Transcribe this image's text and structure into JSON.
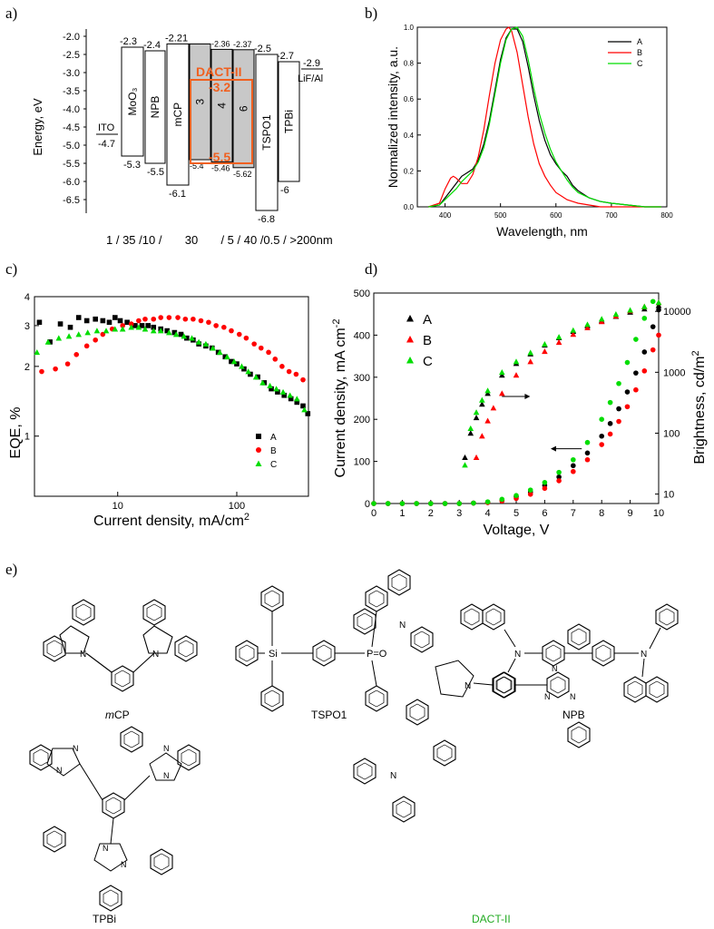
{
  "figure": {
    "panel_labels": [
      "a)",
      "b)",
      "c)",
      "d)",
      "e)"
    ]
  },
  "energy_diagram": {
    "y_label": "Energy, eV",
    "y_ticks": [
      "-2.0",
      "-2.5",
      "-3.0",
      "-3.5",
      "-4.0",
      "-4.5",
      "-5.0",
      "-5.5",
      "-6.0",
      "-6.5"
    ],
    "layers": [
      {
        "name": "ITO",
        "lumo": null,
        "homo": -4.7,
        "lumo_label": "",
        "homo_label": "-4.7"
      },
      {
        "name": "MoO₃",
        "lumo": -2.3,
        "homo": -5.3,
        "lumo_label": "-2.3",
        "homo_label": "-5.3"
      },
      {
        "name": "NPB",
        "lumo": -2.4,
        "homo": -5.5,
        "lumo_label": "-2.4",
        "homo_label": "-5.5"
      },
      {
        "name": "mCP",
        "lumo": -2.21,
        "homo": -6.1,
        "lumo_label": "-2.21",
        "homo_label": "-6.1"
      },
      {
        "name": "3",
        "lumo": -2.21,
        "homo": -5.4,
        "lumo_label": "",
        "homo_label": "-5.4"
      },
      {
        "name": "4",
        "lumo": -2.36,
        "homo": -5.46,
        "lumo_label": "-2.36",
        "homo_label": "-5.46"
      },
      {
        "name": "6",
        "lumo": -2.37,
        "homo": -5.62,
        "lumo_label": "-2.37",
        "homo_label": "-5.62"
      },
      {
        "name": "TSPO1",
        "lumo": -2.5,
        "homo": -6.8,
        "lumo_label": "-2.5",
        "homo_label": "-6.8"
      },
      {
        "name": "TPBi",
        "lumo": -2.7,
        "homo": -6.0,
        "lumo_label": "-2.7",
        "homo_label": "-6"
      },
      {
        "name": "LiF/Al",
        "lumo": -2.9,
        "homo": null,
        "lumo_label": "-2.9",
        "homo_label": ""
      }
    ],
    "host": {
      "name": "DACT-II",
      "lumo_label": "-3.2",
      "homo_label": "-5.5"
    },
    "thickness_text": "1 / 35 /10 /       30       / 5 / 40 /0.5 / >200nm"
  },
  "chart_data": [
    {
      "type": "line",
      "title": "",
      "xlabel": "Wavelength, nm",
      "ylabel": "Normalized intensity, a.u.",
      "xlim": [
        350,
        800
      ],
      "ylim": [
        0,
        1.0
      ],
      "x_ticks": [
        400,
        500,
        600,
        700,
        800
      ],
      "y_ticks": [
        0.0,
        0.2,
        0.4,
        0.6,
        0.8,
        1.0
      ],
      "legend": "top-right",
      "series": [
        {
          "name": "A",
          "color": "#000000",
          "x": [
            370,
            390,
            400,
            410,
            420,
            430,
            440,
            450,
            460,
            470,
            480,
            490,
            500,
            510,
            520,
            530,
            540,
            550,
            560,
            570,
            580,
            590,
            600,
            610,
            620,
            630,
            640,
            660,
            680,
            700,
            730,
            760,
            790
          ],
          "y": [
            0,
            0.01,
            0.05,
            0.09,
            0.13,
            0.17,
            0.19,
            0.21,
            0.26,
            0.35,
            0.48,
            0.65,
            0.82,
            0.94,
            0.99,
            0.99,
            0.92,
            0.78,
            0.62,
            0.48,
            0.37,
            0.29,
            0.24,
            0.2,
            0.17,
            0.12,
            0.09,
            0.05,
            0.03,
            0.02,
            0.01,
            0,
            0
          ]
        },
        {
          "name": "B",
          "color": "#ff0000",
          "x": [
            370,
            390,
            400,
            410,
            415,
            420,
            430,
            440,
            450,
            460,
            470,
            480,
            490,
            500,
            510,
            515,
            520,
            530,
            540,
            550,
            560,
            570,
            580,
            590,
            600,
            610,
            620,
            630,
            640,
            660,
            680,
            700,
            730,
            760,
            790
          ],
          "y": [
            0,
            0.02,
            0.1,
            0.16,
            0.17,
            0.16,
            0.13,
            0.13,
            0.18,
            0.28,
            0.43,
            0.62,
            0.8,
            0.93,
            0.99,
            1.0,
            0.98,
            0.86,
            0.68,
            0.5,
            0.35,
            0.24,
            0.17,
            0.12,
            0.08,
            0.06,
            0.04,
            0.03,
            0.02,
            0.01,
            0,
            0,
            0,
            0,
            0
          ]
        },
        {
          "name": "C",
          "color": "#00dd00",
          "x": [
            370,
            390,
            400,
            410,
            420,
            430,
            440,
            450,
            460,
            470,
            480,
            490,
            500,
            510,
            520,
            530,
            540,
            550,
            560,
            570,
            580,
            590,
            600,
            610,
            620,
            630,
            640,
            660,
            680,
            700,
            730,
            760,
            790
          ],
          "y": [
            0,
            0.01,
            0.04,
            0.07,
            0.1,
            0.14,
            0.17,
            0.2,
            0.25,
            0.33,
            0.46,
            0.63,
            0.8,
            0.93,
            0.99,
            1.0,
            0.95,
            0.82,
            0.66,
            0.52,
            0.41,
            0.32,
            0.25,
            0.2,
            0.15,
            0.11,
            0.08,
            0.05,
            0.03,
            0.02,
            0.01,
            0,
            0
          ]
        }
      ]
    },
    {
      "type": "scatter",
      "title": "",
      "xlabel": "Current density, mA/cm",
      "xlabel_sup": "2",
      "ylabel": "EQE, %",
      "x_scale": "log",
      "y_scale": "log",
      "xlim": [
        2,
        400
      ],
      "ylim": [
        0.55,
        4
      ],
      "x_ticks": [
        10,
        100
      ],
      "y_ticks": [
        1,
        2,
        3,
        4
      ],
      "legend": "bottom-right",
      "series": [
        {
          "name": "A",
          "marker": "square",
          "color": "#000000",
          "x": [
            2.2,
            2.7,
            3.3,
            4.0,
            4.7,
            5.5,
            6.5,
            7.5,
            8.5,
            9.5,
            10.5,
            12,
            14,
            16,
            18,
            20,
            23,
            26,
            30,
            34,
            38,
            43,
            48,
            55,
            62,
            70,
            80,
            90,
            100,
            115,
            130,
            150,
            170,
            195,
            220,
            250,
            285,
            320,
            360,
            395
          ],
          "y": [
            3.1,
            2.55,
            3.05,
            2.95,
            3.25,
            3.15,
            3.2,
            3.15,
            3.1,
            3.25,
            3.15,
            3.1,
            3.0,
            3.0,
            3.0,
            2.95,
            2.9,
            2.85,
            2.8,
            2.75,
            2.65,
            2.6,
            2.5,
            2.45,
            2.4,
            2.3,
            2.2,
            2.1,
            2.05,
            1.95,
            1.85,
            1.8,
            1.7,
            1.6,
            1.55,
            1.5,
            1.45,
            1.4,
            1.35,
            1.25
          ]
        },
        {
          "name": "B",
          "marker": "circle",
          "color": "#ff0000",
          "x": [
            2.3,
            3.0,
            3.8,
            4.5,
            5.5,
            6.5,
            7.5,
            9,
            11,
            13,
            15,
            17,
            20,
            23,
            27,
            32,
            37,
            43,
            50,
            58,
            67,
            78,
            90,
            105,
            120,
            140,
            160,
            185,
            210,
            240,
            275,
            315,
            360
          ],
          "y": [
            1.9,
            1.95,
            2.05,
            2.25,
            2.45,
            2.6,
            2.75,
            2.9,
            3.0,
            3.05,
            3.15,
            3.2,
            3.2,
            3.25,
            3.25,
            3.25,
            3.2,
            3.2,
            3.15,
            3.1,
            3.0,
            2.95,
            2.85,
            2.75,
            2.65,
            2.5,
            2.4,
            2.3,
            2.15,
            2.0,
            1.9,
            1.85,
            1.75
          ]
        },
        {
          "name": "C",
          "marker": "triangle",
          "color": "#00dd00",
          "x": [
            2.1,
            2.6,
            3.2,
            3.9,
            4.7,
            5.6,
            6.7,
            8,
            9.5,
            11,
            13,
            15,
            17,
            20,
            23,
            27,
            31,
            36,
            42,
            48,
            55,
            63,
            72,
            83,
            95,
            110,
            125,
            145,
            165,
            190,
            215,
            245,
            280,
            320,
            370
          ],
          "y": [
            2.3,
            2.55,
            2.65,
            2.7,
            2.75,
            2.8,
            2.85,
            2.85,
            2.9,
            2.9,
            2.95,
            2.95,
            2.9,
            2.85,
            2.85,
            2.8,
            2.75,
            2.7,
            2.65,
            2.55,
            2.5,
            2.4,
            2.3,
            2.2,
            2.1,
            2.0,
            1.9,
            1.8,
            1.7,
            1.65,
            1.6,
            1.55,
            1.5,
            1.45,
            1.3
          ]
        }
      ]
    },
    {
      "type": "scatter",
      "title": "",
      "xlabel": "Voltage, V",
      "ylabel": "Current density, mA cm",
      "ylabel_sup": "-2",
      "y2label": "Brightness, cd/m",
      "y2label_sup": "2",
      "xlim": [
        0,
        10
      ],
      "ylim": [
        0,
        500
      ],
      "y2_scale": "log",
      "y2lim": [
        7,
        20000
      ],
      "x_ticks": [
        0,
        1,
        2,
        3,
        4,
        5,
        6,
        7,
        8,
        9,
        10
      ],
      "y_ticks": [
        0,
        100,
        200,
        300,
        400,
        500
      ],
      "y2_ticks": [
        10,
        100,
        1000,
        10000
      ],
      "legend": "top-left",
      "series": [
        {
          "name": "A",
          "marker": "triangle",
          "color": "#000000",
          "axis": "y2",
          "x": [
            3.2,
            3.4,
            3.6,
            3.8,
            4.0,
            4.5,
            5.0,
            5.5,
            6.0,
            6.5,
            7.0,
            7.5,
            8.0,
            8.5,
            9.0,
            9.5,
            10.0
          ],
          "y": [
            40,
            100,
            180,
            300,
            450,
            900,
            1400,
            2000,
            2800,
            3700,
            4700,
            5800,
            7000,
            8300,
            9700,
            11000,
            12500
          ]
        },
        {
          "name": "B",
          "marker": "triangle",
          "color": "#ff0000",
          "axis": "y2",
          "x": [
            3.6,
            3.8,
            4.0,
            4.2,
            4.5,
            5.0,
            5.5,
            6.0,
            6.5,
            7.0,
            7.5,
            8.0,
            8.5,
            9.0,
            9.5,
            10.0
          ],
          "y": [
            40,
            90,
            160,
            260,
            450,
            900,
            1500,
            2200,
            3100,
            4200,
            5400,
            6800,
            8400,
            10200,
            12000,
            14000
          ]
        },
        {
          "name": "C",
          "marker": "triangle",
          "color": "#00dd00",
          "axis": "y2",
          "x": [
            3.2,
            3.4,
            3.6,
            3.8,
            4.0,
            4.5,
            5.0,
            5.5,
            6.0,
            6.5,
            7.0,
            7.5,
            8.0,
            8.5,
            9.0,
            9.5,
            10.0
          ],
          "y": [
            30,
            120,
            220,
            350,
            500,
            1000,
            1500,
            2100,
            2900,
            3800,
            4900,
            6100,
            7500,
            9000,
            10500,
            12000,
            14000
          ]
        },
        {
          "name": "A",
          "marker": "circle",
          "color": "#000000",
          "axis": "y",
          "x": [
            0,
            0.5,
            1,
            1.5,
            2,
            2.5,
            3,
            3.5,
            4,
            4.5,
            5,
            5.5,
            6,
            6.5,
            7,
            7.5,
            8,
            8.3,
            8.6,
            8.9,
            9.2,
            9.5,
            9.8,
            10
          ],
          "y": [
            0,
            0,
            0,
            0,
            0,
            0,
            0,
            1,
            3,
            8,
            16,
            27,
            43,
            63,
            90,
            120,
            160,
            190,
            225,
            265,
            310,
            360,
            420,
            460
          ]
        },
        {
          "name": "B",
          "marker": "circle",
          "color": "#ff0000",
          "axis": "y",
          "x": [
            0,
            0.5,
            1,
            1.5,
            2,
            2.5,
            3,
            3.5,
            4,
            4.5,
            5,
            5.5,
            6,
            6.5,
            7,
            7.5,
            8,
            8.3,
            8.6,
            8.9,
            9.2,
            9.5,
            9.8,
            10
          ],
          "y": [
            0,
            0,
            0,
            0,
            0,
            0,
            0,
            1,
            2,
            6,
            12,
            22,
            36,
            54,
            76,
            104,
            140,
            165,
            195,
            230,
            270,
            315,
            365,
            400
          ]
        },
        {
          "name": "C",
          "marker": "circle",
          "color": "#00dd00",
          "axis": "y",
          "x": [
            0,
            0.5,
            1,
            1.5,
            2,
            2.5,
            3,
            3.5,
            4,
            4.5,
            5,
            5.5,
            6,
            6.5,
            7,
            7.5,
            8,
            8.3,
            8.6,
            8.9,
            9.2,
            9.5,
            9.8
          ],
          "y": [
            0,
            0,
            0,
            0,
            0,
            0,
            0,
            1,
            4,
            10,
            19,
            32,
            50,
            74,
            104,
            145,
            200,
            240,
            285,
            335,
            390,
            440,
            480
          ]
        }
      ]
    }
  ],
  "molecules": {
    "labels": [
      "mCP",
      "TSPO1",
      "NPB",
      "TPBi",
      "DACT-II"
    ],
    "mcp_label_italic": "m",
    "mcp_label_rest": "CP",
    "dactii_color": "#22aa22"
  }
}
